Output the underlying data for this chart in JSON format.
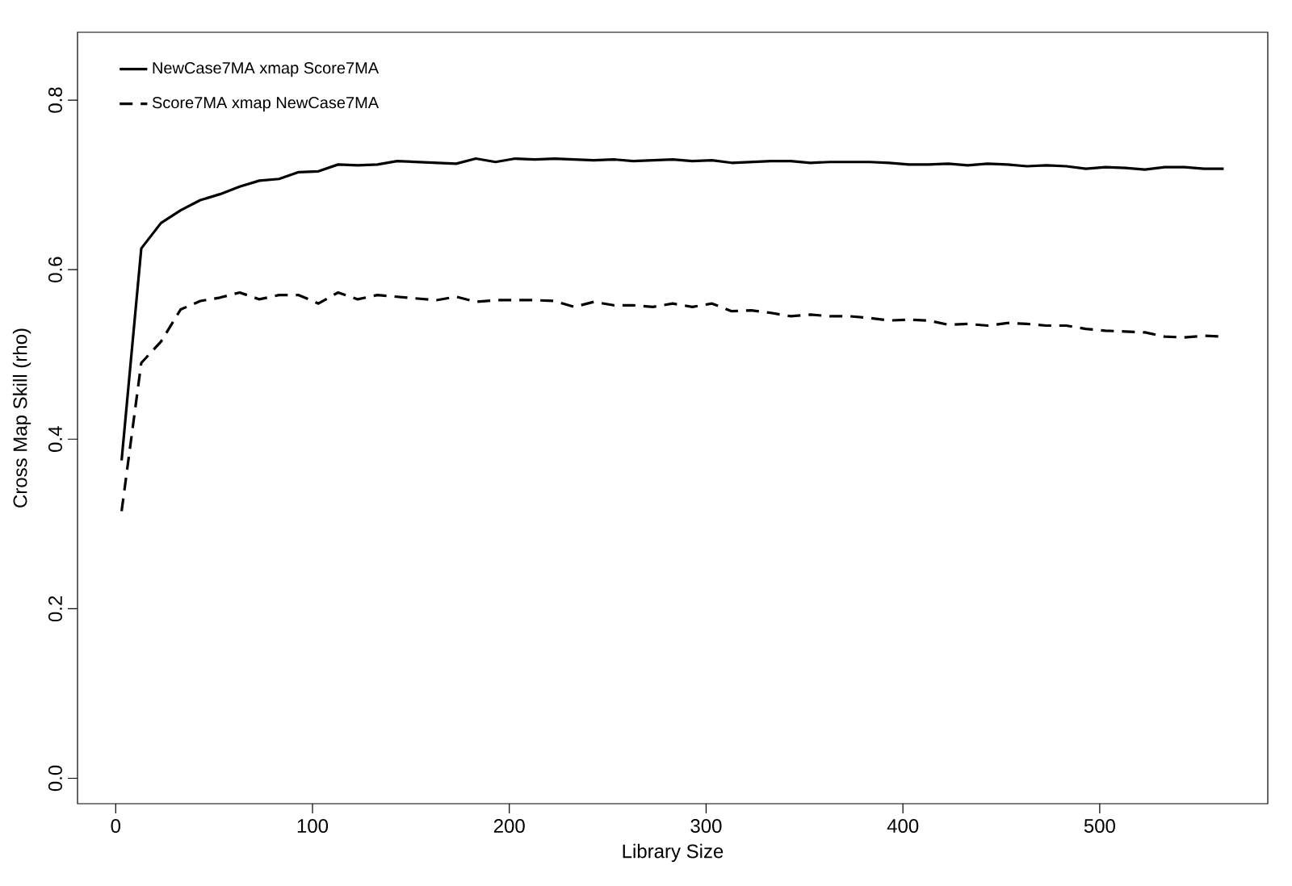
{
  "chart_data": {
    "type": "line",
    "xlabel": "Library Size",
    "ylabel": "Cross Map Skill (rho)",
    "x": [
      3,
      13,
      23,
      33,
      43,
      53,
      63,
      73,
      83,
      93,
      103,
      113,
      123,
      133,
      143,
      153,
      163,
      173,
      183,
      193,
      203,
      213,
      223,
      233,
      243,
      253,
      263,
      273,
      283,
      293,
      303,
      313,
      323,
      333,
      343,
      353,
      363,
      373,
      383,
      393,
      403,
      413,
      423,
      433,
      443,
      453,
      463,
      473,
      483,
      493,
      503,
      513,
      523,
      533,
      543,
      553,
      563
    ],
    "series": [
      {
        "name": "NewCase7MA xmap Score7MA",
        "color": "#000000",
        "line_style": "solid",
        "values": [
          0.375,
          0.625,
          0.655,
          0.67,
          0.682,
          0.689,
          0.698,
          0.705,
          0.707,
          0.715,
          0.716,
          0.724,
          0.723,
          0.724,
          0.728,
          0.727,
          0.726,
          0.725,
          0.731,
          0.727,
          0.731,
          0.73,
          0.731,
          0.73,
          0.729,
          0.73,
          0.728,
          0.729,
          0.73,
          0.728,
          0.729,
          0.726,
          0.727,
          0.728,
          0.728,
          0.726,
          0.727,
          0.727,
          0.727,
          0.726,
          0.724,
          0.724,
          0.725,
          0.723,
          0.725,
          0.724,
          0.722,
          0.723,
          0.722,
          0.719,
          0.721,
          0.72,
          0.718,
          0.721,
          0.721,
          0.719,
          0.719
        ]
      },
      {
        "name": "Score7MA xmap NewCase7MA",
        "color": "#000000",
        "line_style": "dashed",
        "values": [
          0.315,
          0.49,
          0.515,
          0.553,
          0.563,
          0.567,
          0.573,
          0.565,
          0.57,
          0.57,
          0.56,
          0.573,
          0.565,
          0.57,
          0.568,
          0.566,
          0.564,
          0.568,
          0.562,
          0.564,
          0.564,
          0.564,
          0.563,
          0.556,
          0.562,
          0.558,
          0.558,
          0.556,
          0.56,
          0.556,
          0.56,
          0.551,
          0.552,
          0.549,
          0.545,
          0.547,
          0.545,
          0.545,
          0.543,
          0.54,
          0.541,
          0.54,
          0.535,
          0.536,
          0.534,
          0.537,
          0.536,
          0.534,
          0.534,
          0.53,
          0.528,
          0.527,
          0.526,
          0.521,
          0.52,
          0.522,
          0.521
        ]
      }
    ],
    "xlim": [
      -19.4,
      585.4
    ],
    "ylim": [
      -0.03,
      0.88
    ],
    "xticks": [
      0,
      100,
      200,
      300,
      400,
      500
    ],
    "yticks": [
      {
        "value": 0,
        "label": "0.0"
      },
      {
        "value": 0.2,
        "label": "0.2"
      },
      {
        "value": 0.4,
        "label": "0.4"
      },
      {
        "value": 0.6,
        "label": "0.6"
      },
      {
        "value": 0.8,
        "label": "0.8"
      }
    ],
    "legend": "top left",
    "grid": false,
    "marker": "none"
  }
}
